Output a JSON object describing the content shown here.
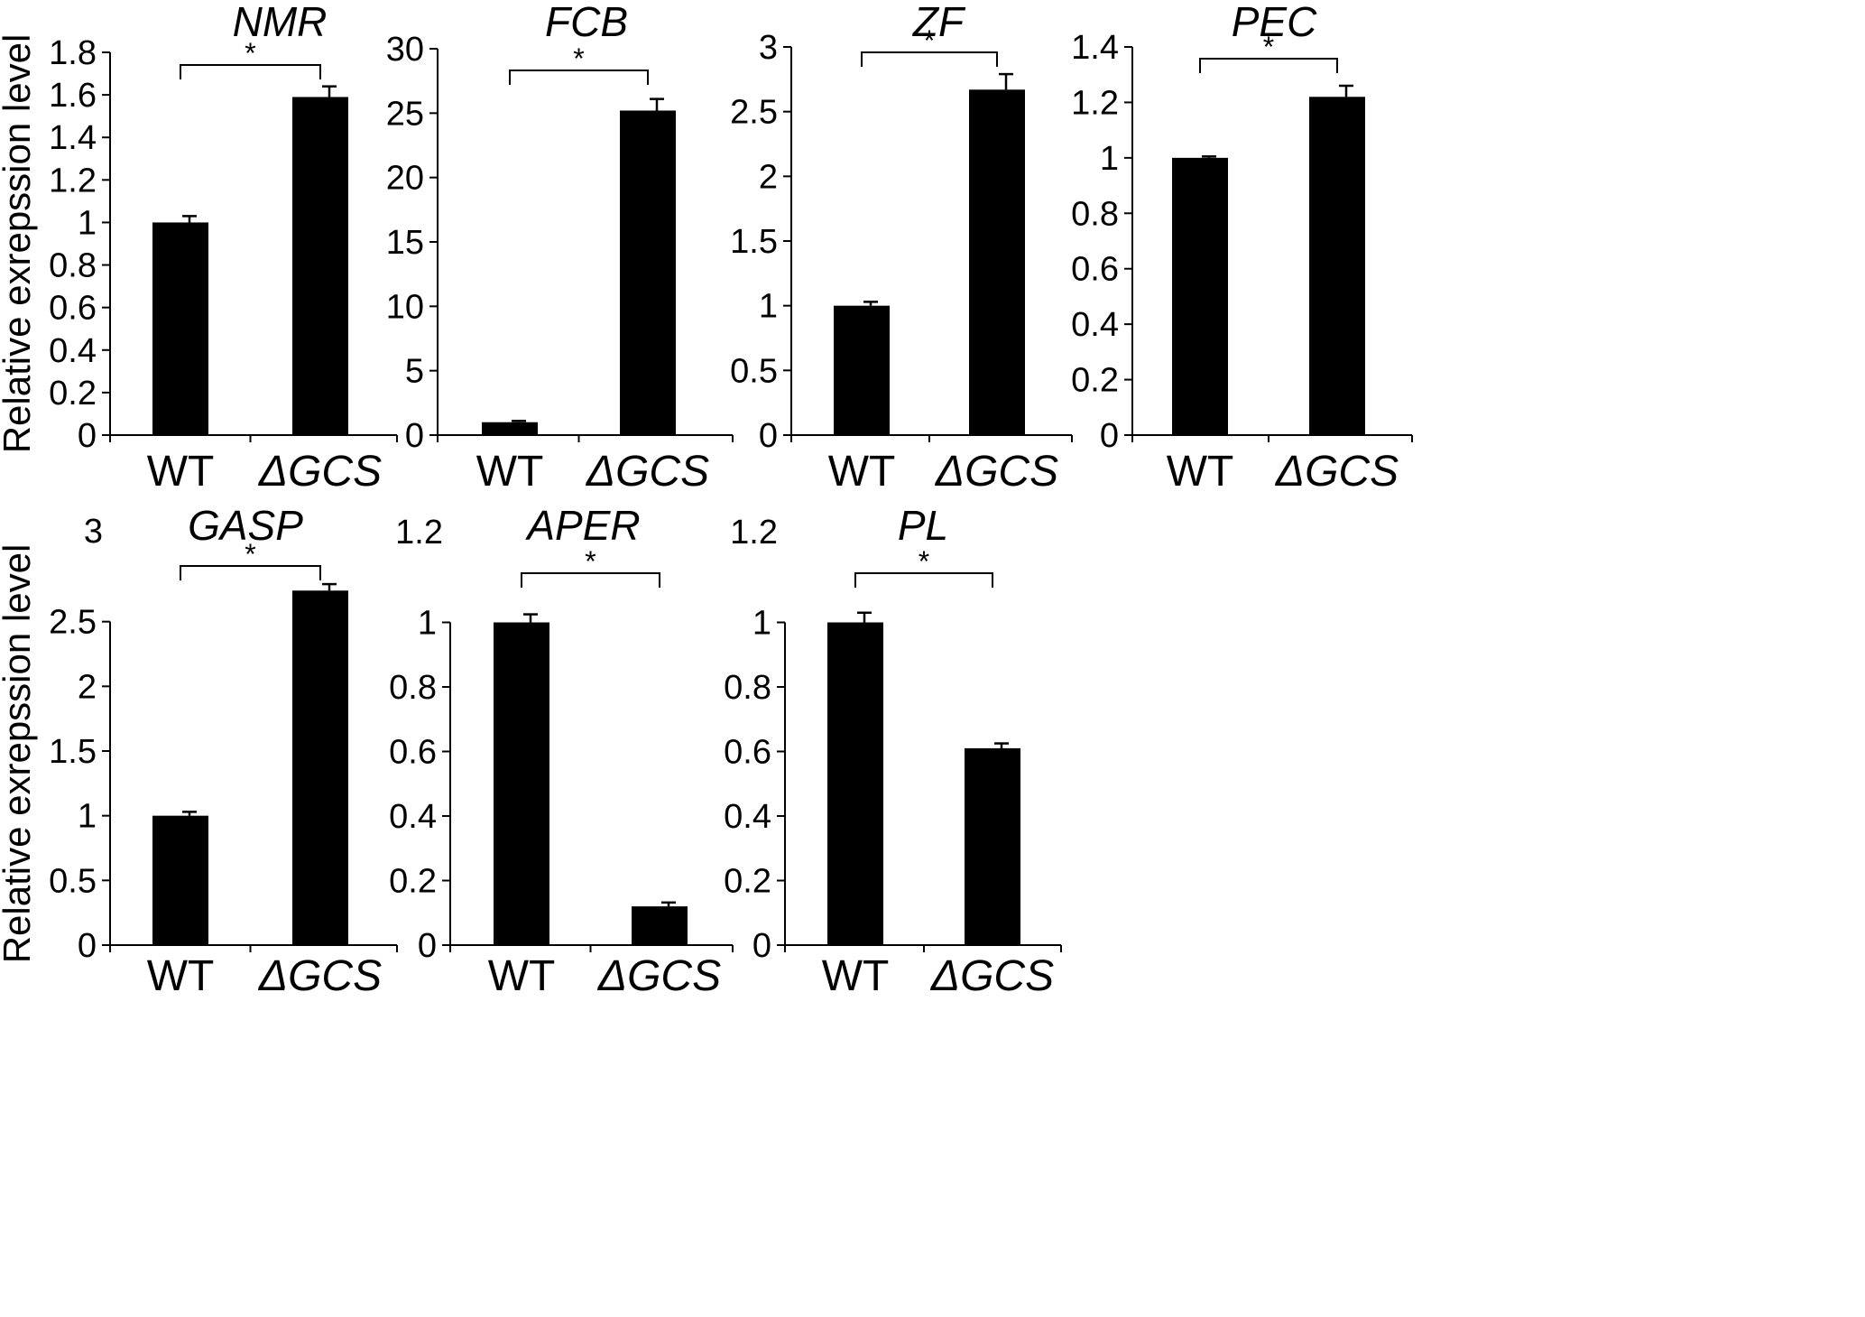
{
  "figure": {
    "ylabel": "Relative exrepssion level"
  },
  "chart_data": [
    {
      "type": "bar",
      "title": "NMR",
      "categories": [
        "WT",
        "ΔGCS"
      ],
      "category_italic": [
        false,
        true
      ],
      "values": [
        1.0,
        1.59
      ],
      "errors": [
        0.03,
        0.05
      ],
      "ylim": [
        0,
        1.8
      ],
      "yticks": [
        0,
        0.2,
        0.4,
        0.6,
        0.8,
        1,
        1.2,
        1.4,
        1.6,
        1.8
      ],
      "ytick_labels": [
        "0",
        "0.2",
        "0.4",
        "0.6",
        "0.8",
        "1",
        "1.2",
        "1.4",
        "1.6",
        "1.8"
      ],
      "significance": "*",
      "ylabel": "Relative exrepssion level"
    },
    {
      "type": "bar",
      "title": "FCB",
      "categories": [
        "WT",
        "ΔGCS"
      ],
      "category_italic": [
        false,
        true
      ],
      "values": [
        1.0,
        25.2
      ],
      "errors": [
        0.1,
        0.9
      ],
      "ylim": [
        0,
        30
      ],
      "yticks": [
        0,
        5,
        10,
        15,
        20,
        25,
        30
      ],
      "ytick_labels": [
        "0",
        "5",
        "10",
        "15",
        "20",
        "25",
        "30"
      ],
      "significance": "*",
      "ylabel": ""
    },
    {
      "type": "bar",
      "title": "ZF",
      "categories": [
        "WT",
        "ΔGCS"
      ],
      "category_italic": [
        false,
        true
      ],
      "values": [
        1.0,
        2.67
      ],
      "errors": [
        0.03,
        0.12
      ],
      "ylim": [
        0,
        3
      ],
      "yticks": [
        0,
        0.5,
        1,
        1.5,
        2,
        2.5,
        3
      ],
      "ytick_labels": [
        "0",
        "0.5",
        "1",
        "1.5",
        "2",
        "2.5",
        "3"
      ],
      "significance": "*",
      "ylabel": ""
    },
    {
      "type": "bar",
      "title": "PEC",
      "categories": [
        "WT",
        "ΔGCS"
      ],
      "category_italic": [
        false,
        true
      ],
      "values": [
        1.0,
        1.22
      ],
      "errors": [
        0.005,
        0.04
      ],
      "ylim": [
        0,
        1.4
      ],
      "yticks": [
        0,
        0.2,
        0.4,
        0.6,
        0.8,
        1,
        1.2,
        1.4
      ],
      "ytick_labels": [
        "0",
        "0.2",
        "0.4",
        "0.6",
        "0.8",
        "1",
        "1.2",
        "1.4"
      ],
      "significance": "*",
      "ylabel": ""
    },
    {
      "type": "bar",
      "title": "GASP",
      "categories": [
        "WT",
        "ΔGCS"
      ],
      "category_italic": [
        false,
        true
      ],
      "values": [
        1.0,
        2.74
      ],
      "errors": [
        0.03,
        0.05
      ],
      "ylim": [
        0,
        3
      ],
      "yticks": [
        0,
        0.5,
        1,
        1.5,
        2,
        2.5,
        3
      ],
      "ytick_labels": [
        "0",
        "0.5",
        "1",
        "1.5",
        "2",
        "2.5",
        "3"
      ],
      "significance": "*",
      "ylabel": "Relative exrepssion level"
    },
    {
      "type": "bar",
      "title": "APER",
      "categories": [
        "WT",
        "ΔGCS"
      ],
      "category_italic": [
        false,
        true
      ],
      "values": [
        1.0,
        0.12
      ],
      "errors": [
        0.025,
        0.012
      ],
      "ylim": [
        0,
        1.2
      ],
      "yticks": [
        0,
        0.2,
        0.4,
        0.6,
        0.8,
        1,
        1.2
      ],
      "ytick_labels": [
        "0",
        "0.2",
        "0.4",
        "0.6",
        "0.8",
        "1",
        "1.2"
      ],
      "significance": "*",
      "ylabel": ""
    },
    {
      "type": "bar",
      "title": "PL",
      "categories": [
        "WT",
        "ΔGCS"
      ],
      "category_italic": [
        false,
        true
      ],
      "values": [
        1.0,
        0.61
      ],
      "errors": [
        0.03,
        0.015
      ],
      "ylim": [
        0,
        1.2
      ],
      "yticks": [
        0,
        0.2,
        0.4,
        0.6,
        0.8,
        1,
        1.2
      ],
      "ytick_labels": [
        "0",
        "0.2",
        "0.4",
        "0.6",
        "0.8",
        "1",
        "1.2"
      ],
      "significance": "*",
      "ylabel": ""
    }
  ]
}
